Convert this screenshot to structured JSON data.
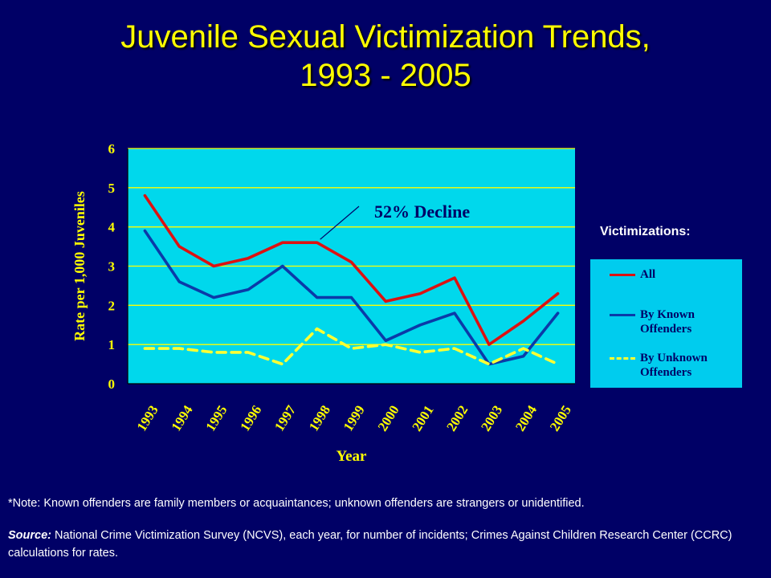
{
  "title": {
    "line1": "Juvenile Sexual Victimization Trends,",
    "line2": "1993 - 2005"
  },
  "chart_data": {
    "type": "line",
    "title": "",
    "xlabel": "Year",
    "ylabel": "Rate per 1,000 Juveniles",
    "x": [
      "1993",
      "1994",
      "1995",
      "1996",
      "1997",
      "1998",
      "1999",
      "2000",
      "2001",
      "2002",
      "2003",
      "2004",
      "2005"
    ],
    "ylim": [
      0,
      6
    ],
    "yticks": [
      "0",
      "1",
      "2",
      "3",
      "4",
      "5",
      "6"
    ],
    "grid": true,
    "series": [
      {
        "name": "All",
        "color": "#dd1111",
        "dash": "solid",
        "values": [
          4.8,
          3.5,
          3.0,
          3.2,
          3.6,
          3.6,
          3.1,
          2.1,
          2.3,
          2.7,
          1.0,
          1.6,
          2.3
        ]
      },
      {
        "name": "By Known Offenders",
        "color": "#0b3aa8",
        "dash": "solid",
        "values": [
          3.9,
          2.6,
          2.2,
          2.4,
          3.0,
          2.2,
          2.2,
          1.1,
          1.5,
          1.8,
          0.5,
          0.7,
          1.8
        ]
      },
      {
        "name": "By Unknown Offenders",
        "color": "#ffff33",
        "dash": "dashed",
        "values": [
          0.9,
          0.9,
          0.8,
          0.8,
          0.5,
          1.4,
          0.9,
          1.0,
          0.8,
          0.9,
          0.5,
          0.9,
          0.5
        ]
      }
    ],
    "annotation": {
      "text": "52% Decline",
      "series": "All",
      "x": "1998"
    },
    "legend_title": "Victimizations:",
    "legend_placement": "right",
    "colors": {
      "plot_bg": "#00d8ec",
      "gridline": "#ffff00",
      "axis_text": "#ffff00",
      "background": "#000066"
    }
  },
  "footer": {
    "note": "*Note:  Known offenders are family members or acquaintances;  unknown  offenders are strangers or unidentified.",
    "source_label": "Source:",
    "source_text": " National Crime Victimization Survey (NCVS), each year, for number of incidents; Crimes Against Children Research Center (CCRC) calculations for rates."
  }
}
